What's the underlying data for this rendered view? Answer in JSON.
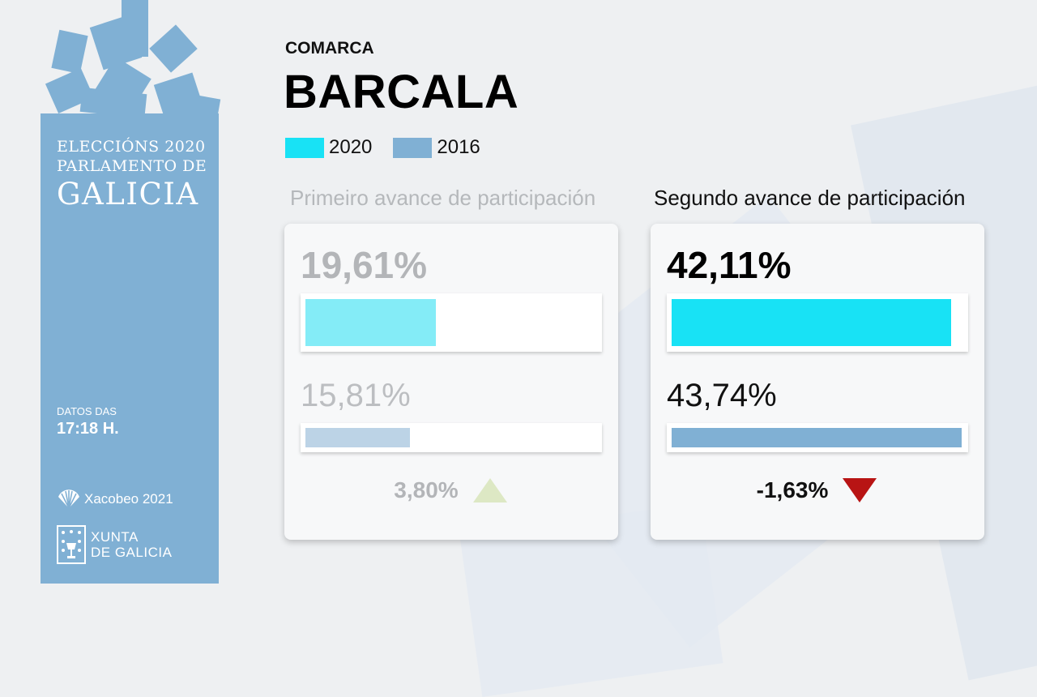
{
  "sidebar": {
    "title_line1": "ELECCIÓNS 2020",
    "title_line2": "PARLAMENTO DE",
    "title_line3": "GALICIA",
    "data_label": "DATOS DAS",
    "data_time": "17:18 H.",
    "xacobeo_label": "Xacobeo 2021",
    "xunta_line1": "XUNTA",
    "xunta_line2": "DE GALICIA",
    "color": "#80b0d4"
  },
  "header": {
    "comarca_label": "COMARCA",
    "comarca_name": "BARCALA"
  },
  "legend": [
    {
      "label": "2020",
      "color": "#18e2f5"
    },
    {
      "label": "2016",
      "color": "#80b0d4"
    }
  ],
  "first_advance": {
    "title": "Primeiro avance de participación",
    "value_2020": "19,61%",
    "value_2016": "15,81%",
    "fraction_2020": 0.4461,
    "fraction_2016": 0.3597,
    "difference": "3,80%",
    "trend_icon": "triangle-up-icon",
    "trend_color": "#dde8c4",
    "dimmed": true
  },
  "second_advance": {
    "title": "Segundo avance de participación",
    "value_2020": "42,11%",
    "value_2016": "43,74%",
    "fraction_2020": 0.958,
    "fraction_2016": 0.995,
    "difference": "-1,63%",
    "trend_icon": "triangle-down-icon",
    "trend_color": "#b81414",
    "dimmed": false
  }
}
